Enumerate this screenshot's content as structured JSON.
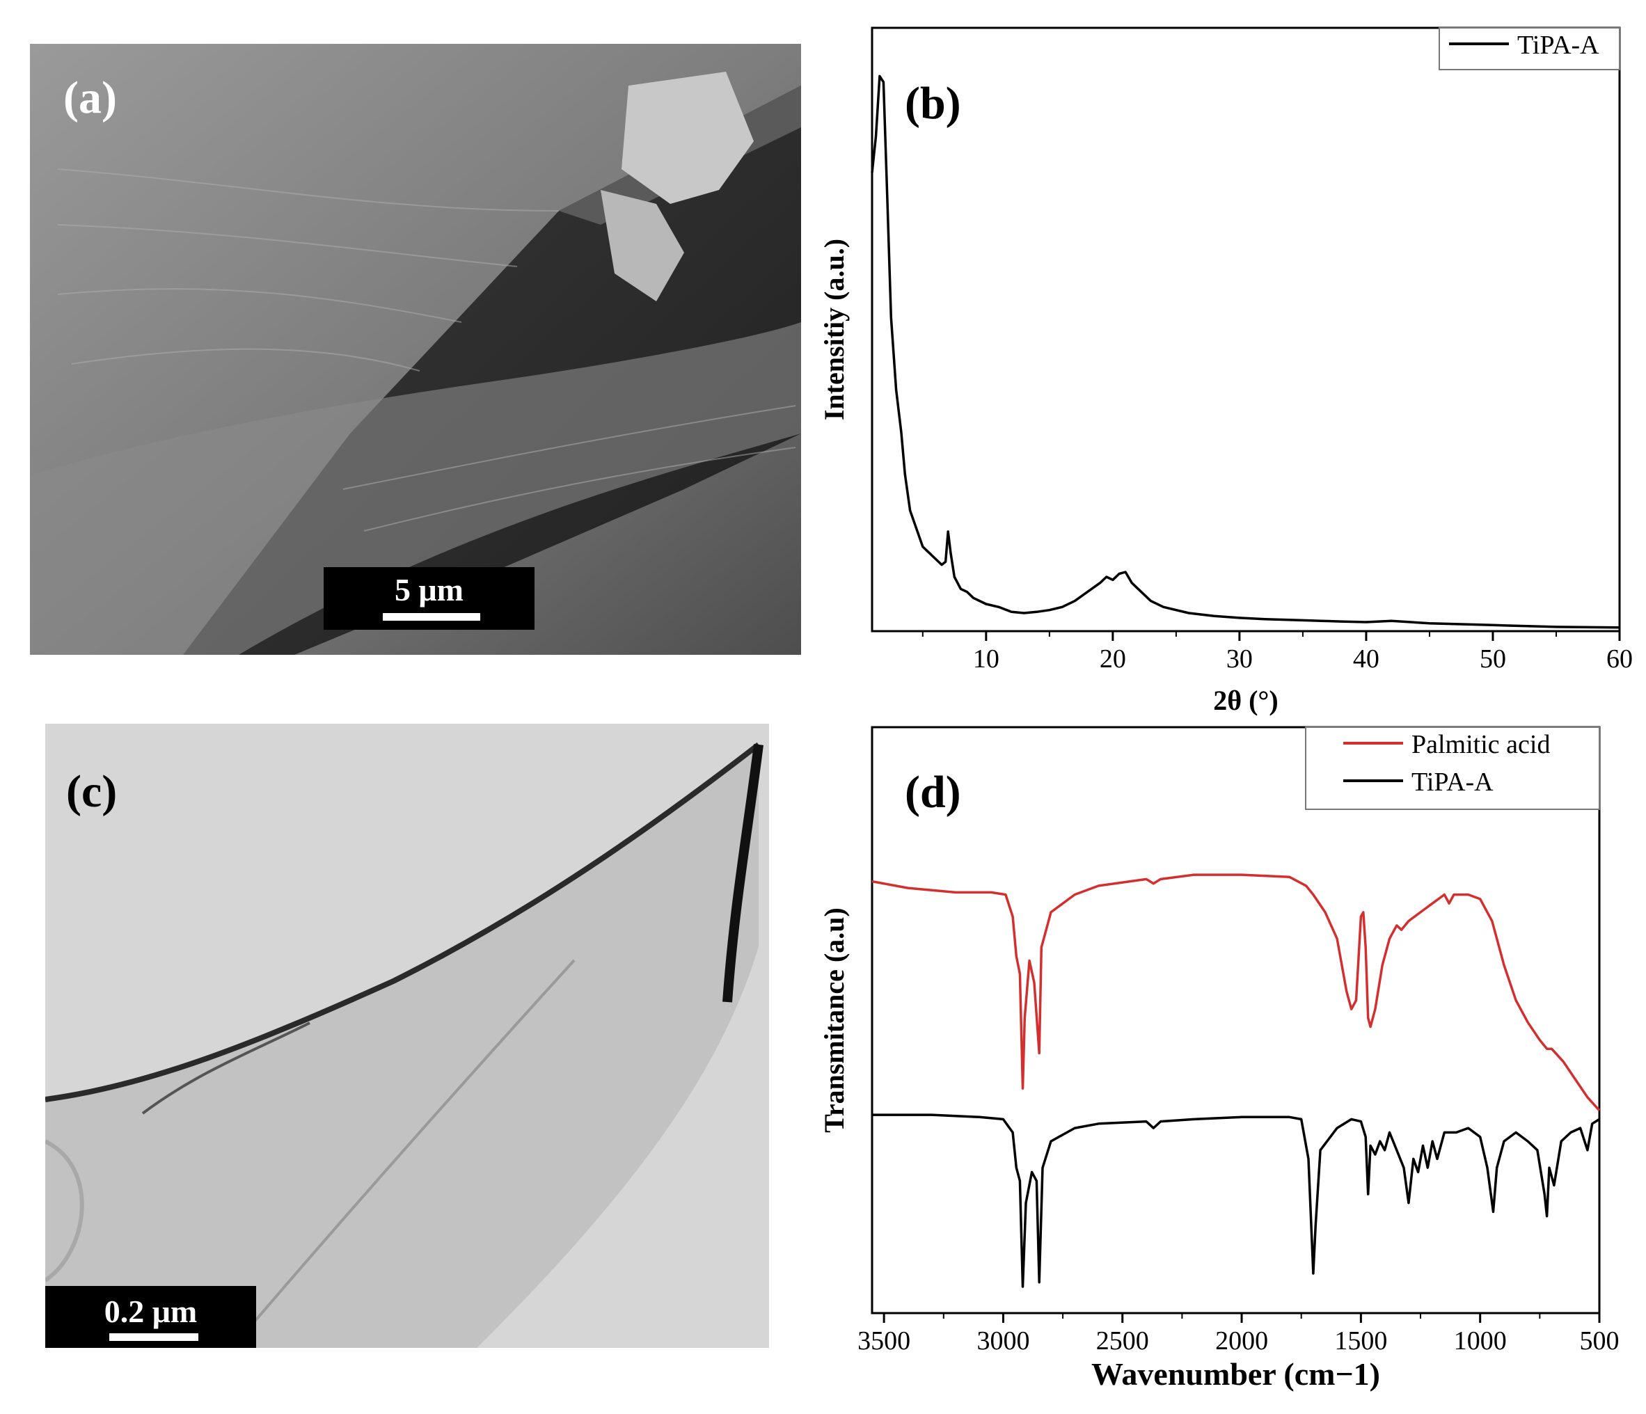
{
  "panels": {
    "a": {
      "label": "(a)",
      "scale_bar": "5 μm"
    },
    "c": {
      "label": "(c)",
      "scale_bar": "0.2 μm"
    }
  },
  "chart_data": [
    {
      "panel_label": "(b)",
      "type": "line",
      "xlabel": "2θ (°)",
      "ylabel": "Intensitiy (a.u.)",
      "xlim": [
        1,
        60
      ],
      "x_ticks": [
        10,
        20,
        30,
        40,
        50,
        60
      ],
      "y_ticks": [],
      "legend": {
        "position": "top-right",
        "entries": [
          "TiPA-A"
        ]
      },
      "series": [
        {
          "name": "TiPA-A",
          "color": "#000000",
          "points": [
            [
              1,
              0.76
            ],
            [
              1.3,
              0.82
            ],
            [
              1.6,
              0.92
            ],
            [
              1.9,
              0.91
            ],
            [
              2.2,
              0.72
            ],
            [
              2.5,
              0.52
            ],
            [
              2.9,
              0.4
            ],
            [
              3.3,
              0.33
            ],
            [
              3.6,
              0.26
            ],
            [
              4.0,
              0.2
            ],
            [
              4.5,
              0.17
            ],
            [
              5.0,
              0.14
            ],
            [
              5.5,
              0.13
            ],
            [
              6.0,
              0.12
            ],
            [
              6.5,
              0.11
            ],
            [
              6.8,
              0.115
            ],
            [
              7.0,
              0.165
            ],
            [
              7.2,
              0.13
            ],
            [
              7.5,
              0.09
            ],
            [
              8.0,
              0.07
            ],
            [
              8.5,
              0.065
            ],
            [
              9.0,
              0.055
            ],
            [
              10,
              0.045
            ],
            [
              11,
              0.04
            ],
            [
              12,
              0.032
            ],
            [
              13,
              0.03
            ],
            [
              14,
              0.032
            ],
            [
              15,
              0.035
            ],
            [
              16,
              0.04
            ],
            [
              17,
              0.05
            ],
            [
              18,
              0.065
            ],
            [
              19,
              0.08
            ],
            [
              19.5,
              0.09
            ],
            [
              20,
              0.085
            ],
            [
              20.5,
              0.095
            ],
            [
              21,
              0.098
            ],
            [
              21.5,
              0.08
            ],
            [
              22,
              0.07
            ],
            [
              23,
              0.05
            ],
            [
              24,
              0.04
            ],
            [
              26,
              0.03
            ],
            [
              28,
              0.025
            ],
            [
              30,
              0.022
            ],
            [
              32,
              0.02
            ],
            [
              35,
              0.018
            ],
            [
              38,
              0.016
            ],
            [
              40,
              0.015
            ],
            [
              42,
              0.017
            ],
            [
              45,
              0.013
            ],
            [
              50,
              0.01
            ],
            [
              55,
              0.007
            ],
            [
              60,
              0.006
            ]
          ]
        }
      ]
    },
    {
      "panel_label": "(d)",
      "type": "line",
      "xlabel": "Wavenumber (cm−1)",
      "ylabel": "Transmitance (a.u)",
      "xlim": [
        3550,
        500
      ],
      "x_reversed": true,
      "x_ticks": [
        3500,
        3000,
        2500,
        2000,
        1500,
        1000,
        500
      ],
      "y_ticks": [],
      "legend": {
        "position": "top-right",
        "entries": [
          "Palmitic acid",
          "TiPA-A"
        ]
      },
      "series": [
        {
          "name": "Palmitic acid",
          "color": "#d32f2f",
          "points": [
            [
              3550,
              0.93
            ],
            [
              3400,
              0.915
            ],
            [
              3200,
              0.905
            ],
            [
              3050,
              0.905
            ],
            [
              2990,
              0.9
            ],
            [
              2960,
              0.85
            ],
            [
              2945,
              0.76
            ],
            [
              2930,
              0.72
            ],
            [
              2918,
              0.46
            ],
            [
              2910,
              0.62
            ],
            [
              2890,
              0.75
            ],
            [
              2870,
              0.7
            ],
            [
              2849,
              0.54
            ],
            [
              2840,
              0.78
            ],
            [
              2800,
              0.86
            ],
            [
              2700,
              0.9
            ],
            [
              2600,
              0.92
            ],
            [
              2400,
              0.935
            ],
            [
              2370,
              0.925
            ],
            [
              2340,
              0.935
            ],
            [
              2200,
              0.945
            ],
            [
              2000,
              0.945
            ],
            [
              1800,
              0.94
            ],
            [
              1730,
              0.92
            ],
            [
              1700,
              0.9
            ],
            [
              1650,
              0.86
            ],
            [
              1600,
              0.8
            ],
            [
              1560,
              0.68
            ],
            [
              1540,
              0.64
            ],
            [
              1520,
              0.66
            ],
            [
              1500,
              0.85
            ],
            [
              1490,
              0.86
            ],
            [
              1480,
              0.78
            ],
            [
              1470,
              0.62
            ],
            [
              1460,
              0.6
            ],
            [
              1440,
              0.64
            ],
            [
              1410,
              0.74
            ],
            [
              1380,
              0.8
            ],
            [
              1350,
              0.83
            ],
            [
              1330,
              0.82
            ],
            [
              1300,
              0.84
            ],
            [
              1250,
              0.86
            ],
            [
              1200,
              0.88
            ],
            [
              1150,
              0.9
            ],
            [
              1130,
              0.88
            ],
            [
              1110,
              0.9
            ],
            [
              1050,
              0.9
            ],
            [
              1000,
              0.89
            ],
            [
              950,
              0.84
            ],
            [
              900,
              0.74
            ],
            [
              850,
              0.66
            ],
            [
              800,
              0.61
            ],
            [
              750,
              0.57
            ],
            [
              720,
              0.55
            ],
            [
              700,
              0.55
            ],
            [
              650,
              0.52
            ],
            [
              600,
              0.48
            ],
            [
              550,
              0.44
            ],
            [
              500,
              0.41
            ]
          ]
        },
        {
          "name": "TiPA-A",
          "color": "#000000",
          "points": [
            [
              3550,
              0.4
            ],
            [
              3300,
              0.4
            ],
            [
              3100,
              0.395
            ],
            [
              3000,
              0.39
            ],
            [
              2960,
              0.36
            ],
            [
              2945,
              0.28
            ],
            [
              2930,
              0.25
            ],
            [
              2918,
              0.01
            ],
            [
              2905,
              0.2
            ],
            [
              2880,
              0.27
            ],
            [
              2860,
              0.25
            ],
            [
              2849,
              0.02
            ],
            [
              2835,
              0.28
            ],
            [
              2800,
              0.34
            ],
            [
              2700,
              0.37
            ],
            [
              2600,
              0.38
            ],
            [
              2400,
              0.385
            ],
            [
              2370,
              0.37
            ],
            [
              2340,
              0.385
            ],
            [
              2200,
              0.39
            ],
            [
              2000,
              0.395
            ],
            [
              1800,
              0.395
            ],
            [
              1750,
              0.39
            ],
            [
              1720,
              0.3
            ],
            [
              1700,
              0.04
            ],
            [
              1690,
              0.15
            ],
            [
              1670,
              0.32
            ],
            [
              1600,
              0.37
            ],
            [
              1540,
              0.39
            ],
            [
              1500,
              0.385
            ],
            [
              1480,
              0.35
            ],
            [
              1470,
              0.22
            ],
            [
              1460,
              0.33
            ],
            [
              1440,
              0.31
            ],
            [
              1420,
              0.34
            ],
            [
              1400,
              0.32
            ],
            [
              1380,
              0.36
            ],
            [
              1350,
              0.32
            ],
            [
              1320,
              0.28
            ],
            [
              1300,
              0.2
            ],
            [
              1280,
              0.3
            ],
            [
              1260,
              0.27
            ],
            [
              1240,
              0.33
            ],
            [
              1220,
              0.28
            ],
            [
              1200,
              0.34
            ],
            [
              1180,
              0.3
            ],
            [
              1150,
              0.36
            ],
            [
              1100,
              0.36
            ],
            [
              1050,
              0.37
            ],
            [
              1000,
              0.35
            ],
            [
              970,
              0.28
            ],
            [
              945,
              0.18
            ],
            [
              930,
              0.28
            ],
            [
              900,
              0.34
            ],
            [
              850,
              0.36
            ],
            [
              800,
              0.34
            ],
            [
              760,
              0.32
            ],
            [
              730,
              0.22
            ],
            [
              720,
              0.17
            ],
            [
              710,
              0.28
            ],
            [
              690,
              0.24
            ],
            [
              660,
              0.34
            ],
            [
              620,
              0.36
            ],
            [
              580,
              0.37
            ],
            [
              550,
              0.32
            ],
            [
              530,
              0.38
            ],
            [
              500,
              0.39
            ]
          ]
        }
      ]
    }
  ]
}
